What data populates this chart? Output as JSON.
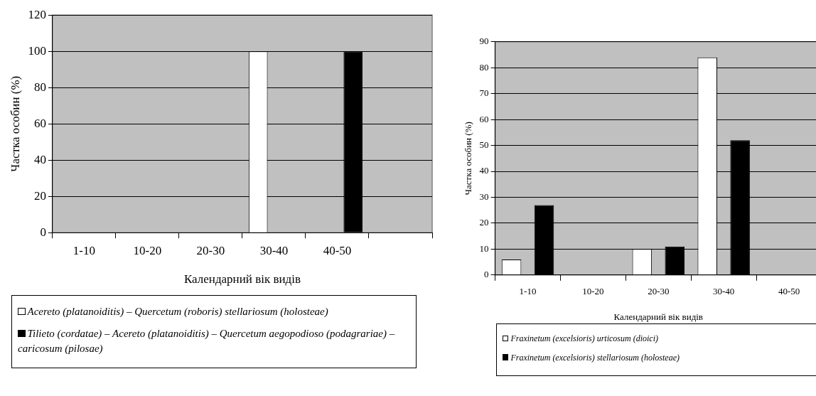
{
  "chart_data": [
    {
      "type": "bar",
      "xlabel": "Календарний вік видів",
      "ylabel": "Частка особин (%)",
      "categories": [
        "1-10",
        "10-20",
        "20-30",
        "30-40",
        "40-50",
        null
      ],
      "series": [
        {
          "name": "Acereto (platanoiditis) – Quercetum (roboris) stellariosum (holosteae)",
          "color": "#ffffff",
          "values": [
            0,
            0,
            0,
            100,
            0,
            0
          ]
        },
        {
          "name": "Tilieto (cordatae) – Acereto (platanoiditis) – Quercetum aegopodioso (podagrariae) – caricosum (pilosae)",
          "color": "#000000",
          "values": [
            0,
            0,
            0,
            0,
            100,
            0
          ]
        }
      ],
      "ylim": [
        0,
        120
      ],
      "yticks": [
        0,
        20,
        40,
        60,
        80,
        100,
        120
      ],
      "grid": "y",
      "legend": "bottom"
    },
    {
      "type": "bar",
      "xlabel": "Календарний вік видів",
      "ylabel": "Частка особин (%)",
      "categories": [
        "1-10",
        "10-20",
        "20-30",
        "30-40",
        "40-50"
      ],
      "series": [
        {
          "name": "Fraxinetum (excelsioris) urticosum (dioici)",
          "color": "#ffffff",
          "values": [
            6,
            0,
            10,
            84,
            0
          ]
        },
        {
          "name": "Fraxinetum (excelsioris) stellariosum (holosteae)",
          "color": "#000000",
          "values": [
            27,
            0,
            11,
            52,
            0
          ]
        }
      ],
      "ylim": [
        0,
        90
      ],
      "yticks": [
        0,
        10,
        20,
        30,
        40,
        50,
        60,
        70,
        80,
        90
      ],
      "grid": "y",
      "legend": "bottom"
    }
  ]
}
